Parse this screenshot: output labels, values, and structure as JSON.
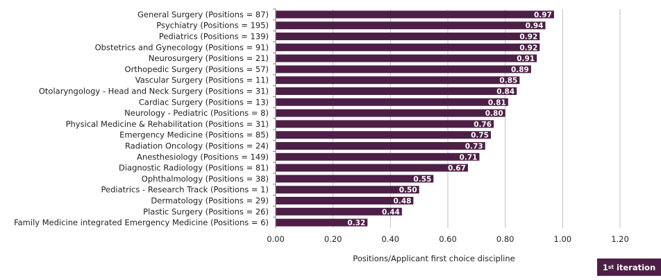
{
  "chart_data": {
    "type": "bar",
    "orientation": "horizontal",
    "categories": [
      "General Surgery (Positions = 87)",
      "Psychiatry (Positions = 195)",
      "Pediatrics (Positions = 139)",
      "Obstetrics and Gynecology (Positions = 91)",
      "Neurosurgery (Positions = 21)",
      "Orthopedic Surgery (Positions = 57)",
      "Vascular Surgery (Positions = 11)",
      "Otolaryngology - Head and Neck Surgery (Positions = 31)",
      "Cardiac Surgery (Positions = 13)",
      "Neurology - Pediatric (Positions = 8)",
      "Physical Medicine & Rehabilitation (Positions = 31)",
      "Emergency Medicine (Positions = 85)",
      "Radiation Oncology (Positions = 24)",
      "Anesthesiology (Positions = 149)",
      "Diagnostic Radiology (Positions = 81)",
      "Ophthalmology (Positions = 38)",
      "Pediatrics - Research Track (Positions = 1)",
      "Dermatology (Positions = 29)",
      "Plastic Surgery (Positions = 26)",
      "Family Medicine integrated Emergency Medicine (Positions = 6)"
    ],
    "values": [
      0.97,
      0.94,
      0.92,
      0.92,
      0.91,
      0.89,
      0.85,
      0.84,
      0.81,
      0.8,
      0.76,
      0.75,
      0.73,
      0.71,
      0.67,
      0.55,
      0.5,
      0.48,
      0.44,
      0.32
    ],
    "value_labels": [
      "0.97",
      "0.94",
      "0.92",
      "0.92",
      "0.91",
      "0.89",
      "0.85",
      "0.84",
      "0.81",
      "0.80",
      "0.76",
      "0.75",
      "0.73",
      "0.71",
      "0.67",
      "0.55",
      "0.50",
      "0.48",
      "0.44",
      "0.32"
    ],
    "xlabel": "Positions/Applicant first choice discipline",
    "ylabel": "",
    "title": "",
    "xlim": [
      0,
      1.2
    ],
    "xticks": [
      "0.00",
      "0.20",
      "0.40",
      "0.60",
      "0.80",
      "1.00",
      "1.20"
    ],
    "xtick_values": [
      0,
      0.2,
      0.4,
      0.6,
      0.8,
      1.0,
      1.2
    ],
    "grid": "vertical",
    "legend": "none",
    "bar_color": "#4d1f47",
    "grid_color": "#bfbfbf"
  },
  "badge": {
    "prefix": "1",
    "sup": "st",
    "suffix": " iteration"
  }
}
